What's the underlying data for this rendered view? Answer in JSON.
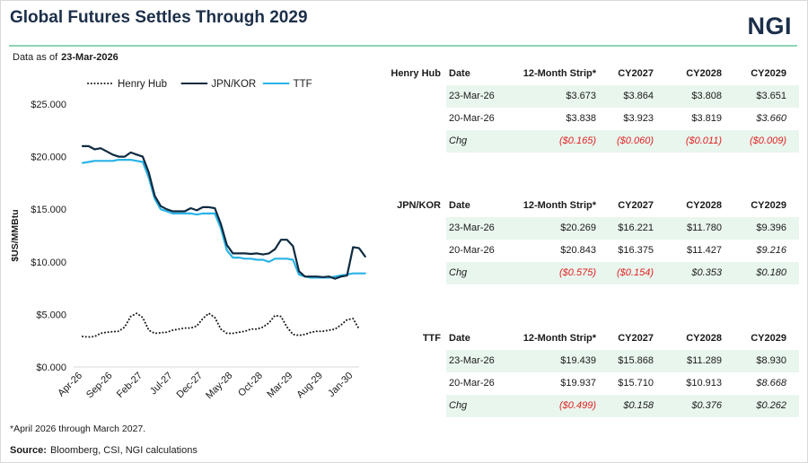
{
  "header": {
    "title": "Global Futures Settles Through 2029",
    "logo": "NGI",
    "as_of_label": "Data as of",
    "as_of_date": "23-Mar-2026"
  },
  "colors": {
    "henry_hub": "#1a1a1a",
    "jpn_kor": "#0e2a40",
    "ttf": "#29b3e6",
    "rule": "#8fd3b4",
    "row_shade": "#e9f6ee",
    "negative": "#e02020"
  },
  "chart_data": {
    "type": "line",
    "ylabel": "$US/MMBtu",
    "ylim": [
      0,
      25
    ],
    "y_ticks": [
      0,
      5,
      10,
      15,
      20,
      25
    ],
    "y_tick_labels": [
      "$0.000",
      "$5.000",
      "$10.000",
      "$15.000",
      "$20.000",
      "$25.000"
    ],
    "x_tick_labels": [
      "Apr-26",
      "Sep-26",
      "Feb-27",
      "Jul-27",
      "Dec-27",
      "May-28",
      "Oct-28",
      "Mar-29",
      "Aug-29",
      "Jan-30"
    ],
    "x_tick_month_index": [
      0,
      5,
      10,
      15,
      20,
      25,
      30,
      35,
      40,
      45
    ],
    "legend_position": "top",
    "series": [
      {
        "name": "Henry Hub",
        "style": "dotted",
        "color": "#1a1a1a",
        "values": [
          2.9,
          2.85,
          2.9,
          3.2,
          3.3,
          3.35,
          3.4,
          3.8,
          4.8,
          5.1,
          4.7,
          3.5,
          3.2,
          3.25,
          3.3,
          3.5,
          3.6,
          3.7,
          3.7,
          3.9,
          4.6,
          5.1,
          4.7,
          3.6,
          3.2,
          3.2,
          3.3,
          3.4,
          3.6,
          3.6,
          3.8,
          4.2,
          4.9,
          4.8,
          3.8,
          3.1,
          3.0,
          3.1,
          3.3,
          3.4,
          3.4,
          3.5,
          3.6,
          4.0,
          4.5,
          4.6,
          3.6
        ]
      },
      {
        "name": "JPN/KOR",
        "style": "solid",
        "color": "#0e2a40",
        "values": [
          21.0,
          21.0,
          20.7,
          20.8,
          20.5,
          20.2,
          20.0,
          20.0,
          20.4,
          20.2,
          20.0,
          18.5,
          16.3,
          15.3,
          15.0,
          14.8,
          14.8,
          14.8,
          15.1,
          14.9,
          15.2,
          15.2,
          15.1,
          13.6,
          11.6,
          10.8,
          10.8,
          10.8,
          10.75,
          10.8,
          10.7,
          10.8,
          11.2,
          12.1,
          12.1,
          11.5,
          9.1,
          8.6,
          8.6,
          8.6,
          8.55,
          8.6,
          8.4,
          8.6,
          8.7,
          11.4,
          11.3,
          10.5
        ]
      },
      {
        "name": "TTF",
        "style": "solid",
        "color": "#29b3e6",
        "values": [
          19.4,
          19.5,
          19.6,
          19.6,
          19.6,
          19.6,
          19.7,
          19.7,
          19.7,
          19.6,
          19.5,
          18.0,
          16.0,
          15.0,
          14.8,
          14.6,
          14.6,
          14.6,
          14.6,
          14.5,
          14.6,
          14.6,
          14.6,
          13.2,
          11.1,
          10.4,
          10.4,
          10.3,
          10.3,
          10.2,
          10.2,
          10.0,
          10.3,
          10.3,
          10.3,
          10.2,
          8.8,
          8.6,
          8.5,
          8.5,
          8.5,
          8.5,
          8.6,
          8.7,
          8.8,
          8.9,
          8.9,
          8.9
        ]
      }
    ]
  },
  "tables": [
    {
      "group": "Henry Hub",
      "headers": [
        "Date",
        "12-Month Strip*",
        "CY2027",
        "CY2028",
        "CY2029"
      ],
      "rows": [
        {
          "date": "23-Mar-26",
          "strip": "$3.673",
          "cy2027": "$3.864",
          "cy2028": "$3.808",
          "cy2029": "$3.651"
        },
        {
          "date": "20-Mar-26",
          "strip": "$3.838",
          "cy2027": "$3.923",
          "cy2028": "$3.819",
          "cy2029": "$3.660"
        }
      ],
      "chg": {
        "label": "Chg",
        "strip": "($0.165)",
        "cy2027": "($0.060)",
        "cy2028": "($0.011)",
        "cy2029": "($0.009)"
      }
    },
    {
      "group": "JPN/KOR",
      "headers": [
        "Date",
        "12-Month Strip*",
        "CY2027",
        "CY2028",
        "CY2029"
      ],
      "rows": [
        {
          "date": "23-Mar-26",
          "strip": "$20.269",
          "cy2027": "$16.221",
          "cy2028": "$11.780",
          "cy2029": "$9.396"
        },
        {
          "date": "20-Mar-26",
          "strip": "$20.843",
          "cy2027": "$16.375",
          "cy2028": "$11.427",
          "cy2029": "$9.216"
        }
      ],
      "chg": {
        "label": "Chg",
        "strip": "($0.575)",
        "cy2027": "($0.154)",
        "cy2028": "$0.353",
        "cy2029": "$0.180"
      }
    },
    {
      "group": "TTF",
      "headers": [
        "Date",
        "12-Month Strip*",
        "CY2027",
        "CY2028",
        "CY2029"
      ],
      "rows": [
        {
          "date": "23-Mar-26",
          "strip": "$19.439",
          "cy2027": "$15.868",
          "cy2028": "$11.289",
          "cy2029": "$8.930"
        },
        {
          "date": "20-Mar-26",
          "strip": "$19.937",
          "cy2027": "$15.710",
          "cy2028": "$10.913",
          "cy2029": "$8.668"
        }
      ],
      "chg": {
        "label": "Chg",
        "strip": "($0.499)",
        "cy2027": "$0.158",
        "cy2028": "$0.376",
        "cy2029": "$0.262"
      }
    }
  ],
  "footer": {
    "note": "*April 2026 through March 2027.",
    "source_label": "Source:",
    "source_text": "Bloomberg, CSI, NGI calculations"
  }
}
